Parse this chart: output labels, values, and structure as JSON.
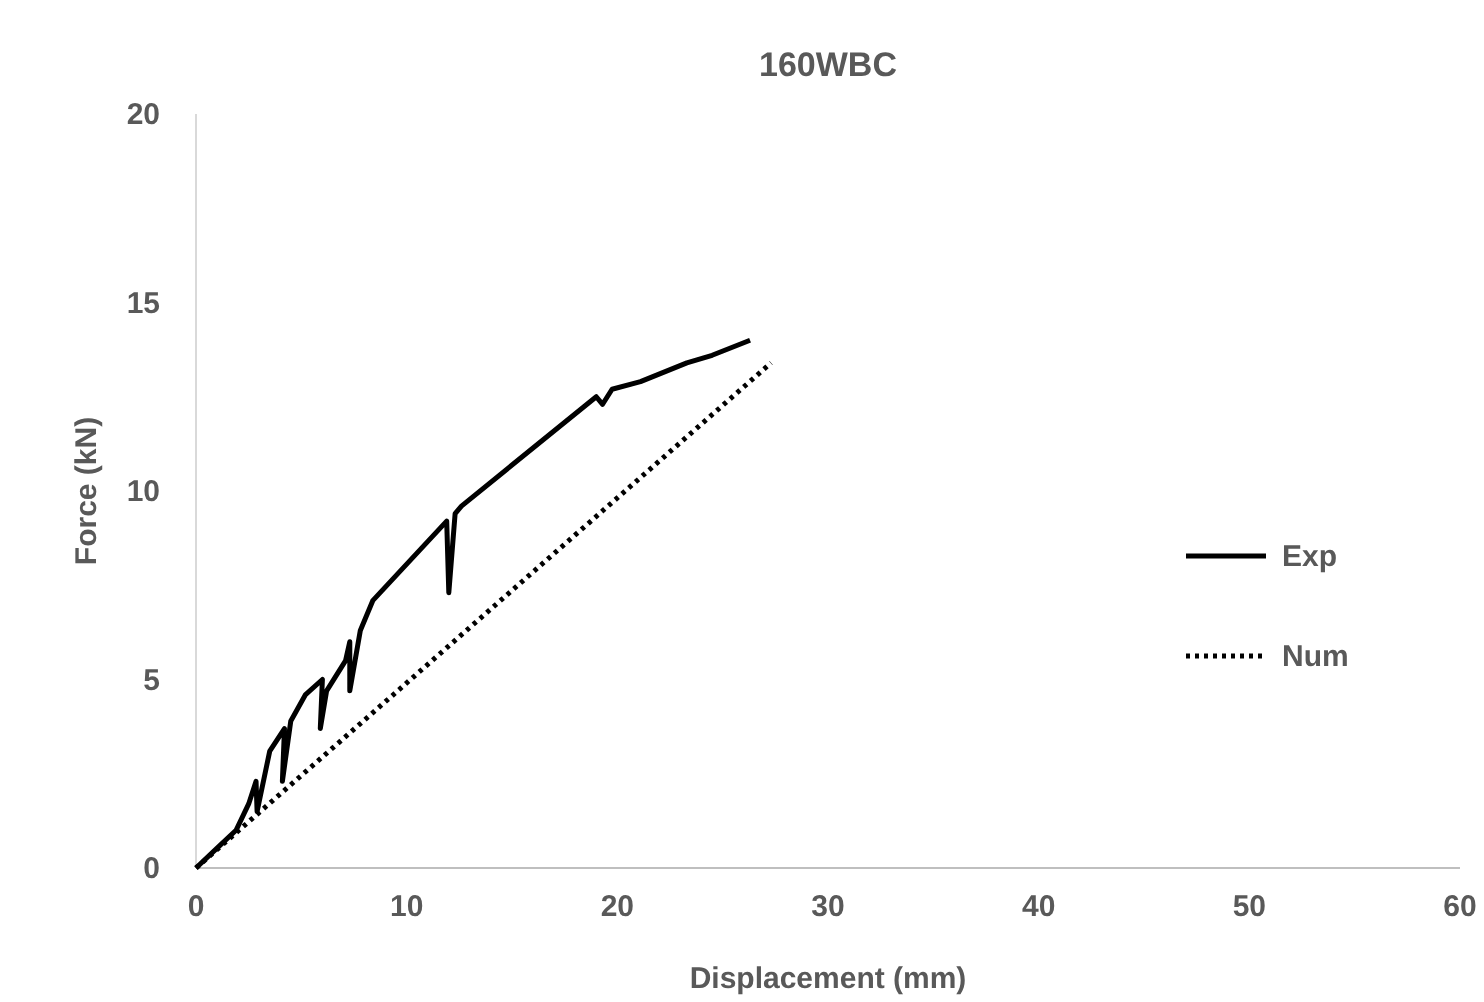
{
  "chart_data": {
    "type": "line",
    "title": "160WBC",
    "xlabel": "Displacement (mm)",
    "ylabel": "Force (kN)",
    "xlim": [
      0,
      60
    ],
    "xticks": [
      0,
      10,
      20,
      30,
      40,
      50,
      60
    ],
    "ylim": [
      0,
      20
    ],
    "yticks": [
      0,
      5,
      10,
      15,
      20
    ],
    "grid": false,
    "legend": "right",
    "marker": "none",
    "series": [
      {
        "name": "Exp",
        "color": "#000000",
        "line_style": "solid",
        "x": [
          0,
          0.95,
          1.9,
          2.5,
          2.85,
          2.9,
          3.5,
          4.2,
          4.1,
          4.5,
          5.2,
          6.0,
          5.9,
          6.2,
          7.1,
          7.3,
          7.3,
          7.8,
          8.4,
          11.9,
          12.0,
          12.3,
          12.6,
          19.0,
          19.3,
          19.75,
          21.1,
          23.3,
          24.5,
          26.3
        ],
        "values": [
          0,
          0.5,
          1.0,
          1.7,
          2.3,
          1.5,
          3.1,
          3.7,
          2.3,
          3.9,
          4.6,
          5.0,
          3.7,
          4.7,
          5.5,
          6.0,
          4.7,
          6.3,
          7.1,
          9.2,
          7.3,
          9.4,
          9.6,
          12.5,
          12.3,
          12.7,
          12.9,
          13.4,
          13.6,
          14.0
        ]
      },
      {
        "name": "Num",
        "color": "#000000",
        "line_style": "dotted",
        "x": [
          0,
          27.3
        ],
        "values": [
          0,
          13.4
        ]
      }
    ]
  }
}
